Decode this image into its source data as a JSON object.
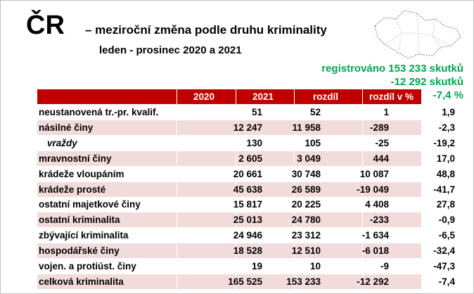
{
  "header": {
    "title": "ČR",
    "subtitle": "– meziroční změna podle druhu kriminality",
    "period": "leden - prosinec 2020 a 2021"
  },
  "summary": [
    "registrováno 153 233 skutků",
    "-12 292 skutků",
    "-7,4 %"
  ],
  "table": {
    "columns": [
      "",
      "2020",
      "2021",
      "rozdíl",
      "rozdíl v %"
    ],
    "rows": [
      [
        "neustanovená tr.-pr. kvalif.",
        "51",
        "52",
        "1",
        "1,9"
      ],
      [
        "násilné činy",
        "12 247",
        "11 958",
        "-289",
        "-2,3"
      ],
      [
        "vraždy",
        "130",
        "105",
        "-25",
        "-19,2"
      ],
      [
        "mravnostní činy",
        "2 605",
        "3 049",
        "444",
        "17,0"
      ],
      [
        "krádeže vloupáním",
        "20 661",
        "30 748",
        "10 087",
        "48,8"
      ],
      [
        "krádeže prosté",
        "45 638",
        "26 589",
        "-19 049",
        "-41,7"
      ],
      [
        "ostatní majetkové činy",
        "15 817",
        "20 225",
        "4 408",
        "27,8"
      ],
      [
        "ostatní kriminalita",
        "25 013",
        "24 780",
        "-233",
        "-0,9"
      ],
      [
        "zbývající kriminalita",
        "24 946",
        "23 312",
        "-1 634",
        "-6,5"
      ],
      [
        "hospodářské činy",
        "18 528",
        "12 510",
        "-6 018",
        "-32,4"
      ],
      [
        "vojen. a protiúst. činy",
        "19",
        "10",
        "-9",
        "-47,3"
      ],
      [
        "celková kriminalita",
        "165 525",
        "153 233",
        "-12 292",
        "-7,4"
      ]
    ]
  }
}
